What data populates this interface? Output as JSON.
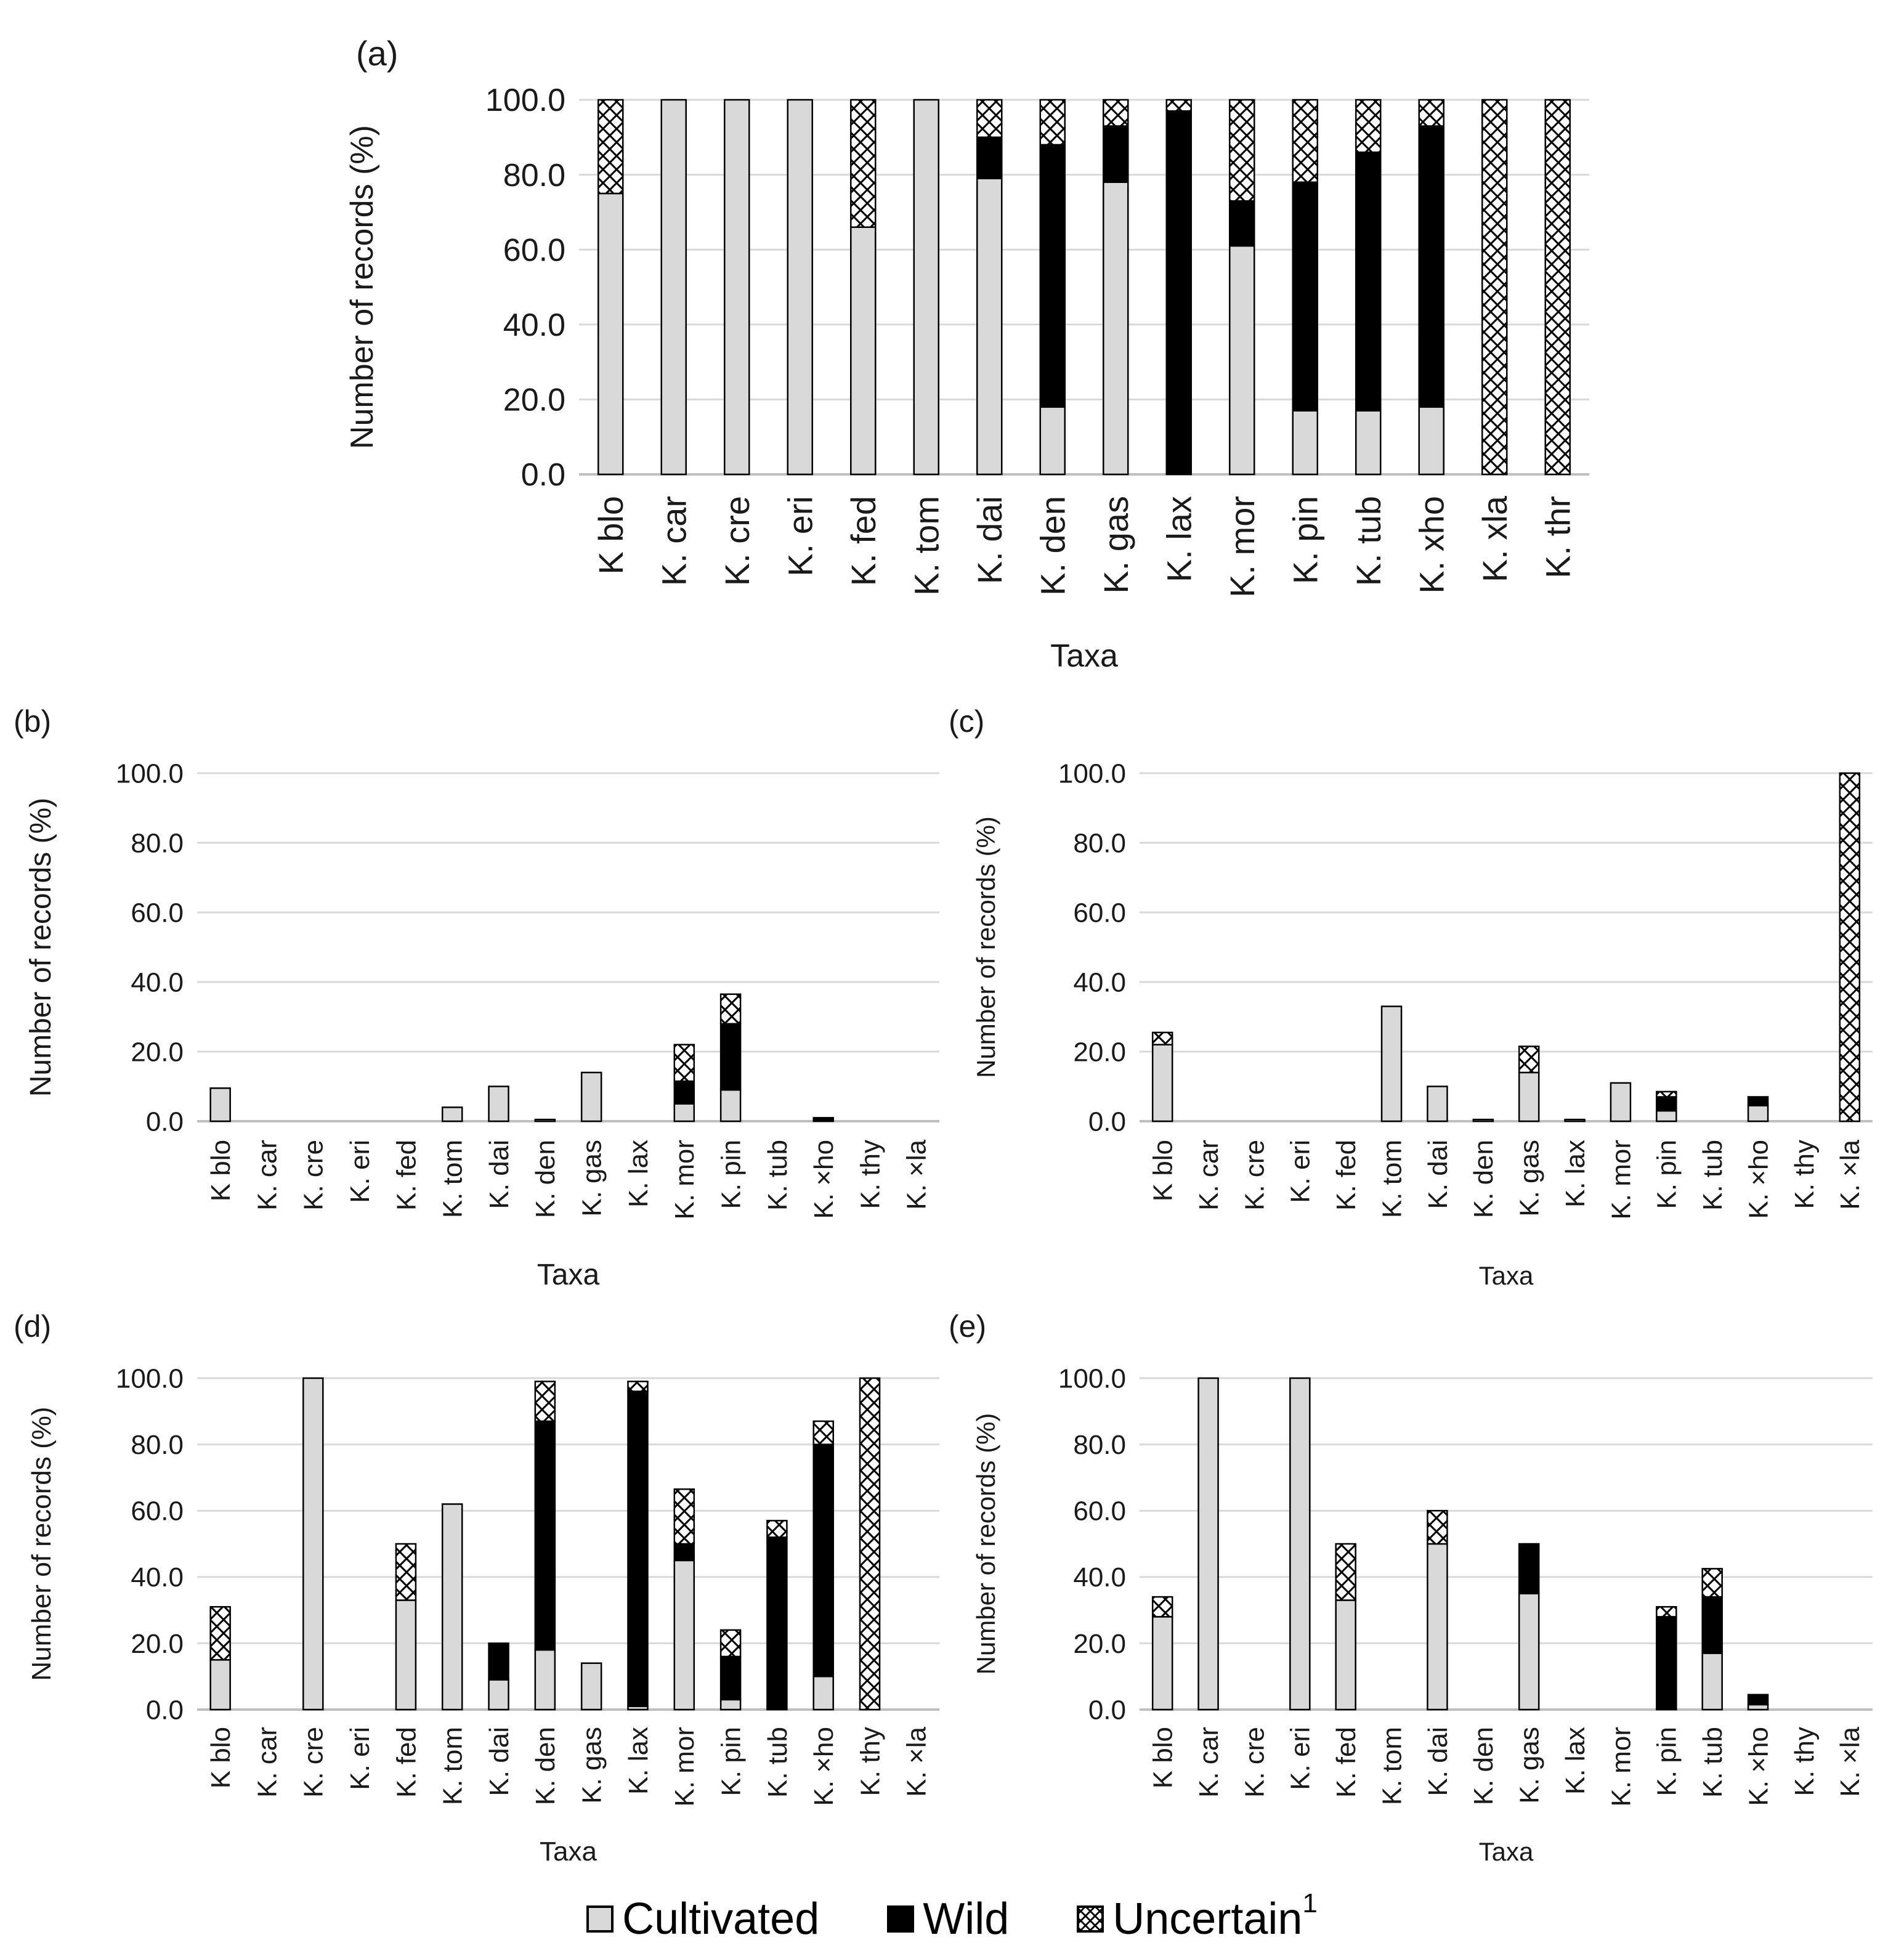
{
  "series_labels": {
    "cultivated": "Cultivated",
    "wild": "Wild",
    "uncertain": "Uncertain",
    "uncertain_sup": "1"
  },
  "colors": {
    "cultivated": "#d9d9d9",
    "wild": "#000000",
    "uncertain_pattern": "#000000",
    "grid": "#d9d9d9",
    "axis": "#bfbfbf"
  },
  "chart_data": [
    {
      "panel": "(a)",
      "type": "bar",
      "stacked": true,
      "xlabel": "Taxa",
      "ylabel": "Number of records (%)",
      "ylim": [
        0,
        100
      ],
      "yticks": [
        "0.0",
        "20.0",
        "40.0",
        "60.0",
        "80.0",
        "100.0"
      ],
      "categories": [
        "K blo",
        "K. car",
        "K. cre",
        "K. eri",
        "K. fed",
        "K. tom",
        "K. dai",
        "K. den",
        "K. gas",
        "K. lax",
        "K. mor",
        "K. pin",
        "K. tub",
        "K. xho",
        "K. xla",
        "K. thr"
      ],
      "series": [
        {
          "name": "Cultivated",
          "values": [
            75,
            100,
            100,
            100,
            66,
            100,
            79,
            18,
            78,
            0,
            61,
            17,
            17,
            18,
            0,
            0
          ]
        },
        {
          "name": "Wild",
          "values": [
            0,
            0,
            0,
            0,
            0,
            0,
            11,
            70,
            15,
            97,
            12,
            61,
            69,
            75,
            0,
            0
          ]
        },
        {
          "name": "Uncertain",
          "values": [
            25,
            0,
            0,
            0,
            34,
            0,
            10,
            12,
            7,
            3,
            27,
            22,
            14,
            7,
            100,
            100
          ]
        }
      ]
    },
    {
      "panel": "(b)",
      "type": "bar",
      "stacked": true,
      "xlabel": "Taxa",
      "ylabel": "Number of records (%)",
      "ylim": [
        0,
        100
      ],
      "yticks": [
        "0.0",
        "20.0",
        "40.0",
        "60.0",
        "80.0",
        "100.0"
      ],
      "categories": [
        "K blo",
        "K. car",
        "K. cre",
        "K. eri",
        "K. fed",
        "K. tom",
        "K. dai",
        "K. den",
        "K. gas",
        "K. lax",
        "K. mor",
        "K. pin",
        "K. tub",
        "K. ×ho",
        "K. thy",
        "K. ×la"
      ],
      "series": [
        {
          "name": "Cultivated",
          "values": [
            9.5,
            0,
            0,
            0,
            0,
            4,
            10,
            0.5,
            14,
            0,
            5,
            9,
            0,
            0,
            0,
            0
          ]
        },
        {
          "name": "Wild",
          "values": [
            0,
            0,
            0,
            0,
            0,
            0,
            0,
            0,
            0,
            0,
            6.5,
            19,
            0,
            1,
            0,
            0
          ]
        },
        {
          "name": "Uncertain",
          "values": [
            0,
            0,
            0,
            0,
            0,
            0,
            0,
            0,
            0,
            0,
            10.5,
            8.5,
            0,
            0,
            0,
            0
          ]
        }
      ]
    },
    {
      "panel": "(c)",
      "type": "bar",
      "stacked": true,
      "xlabel": "Taxa",
      "ylabel": "Number of records (%)",
      "ylim": [
        0,
        100
      ],
      "yticks": [
        "0.0",
        "20.0",
        "40.0",
        "60.0",
        "80.0",
        "100.0"
      ],
      "categories": [
        "K blo",
        "K. car",
        "K. cre",
        "K. eri",
        "K. fed",
        "K. tom",
        "K. dai",
        "K. den",
        "K. gas",
        "K. lax",
        "K. mor",
        "K. pin",
        "K. tub",
        "K. ×ho",
        "K. thy",
        "K. ×la"
      ],
      "series": [
        {
          "name": "Cultivated",
          "values": [
            22,
            0,
            0,
            0,
            0,
            33,
            10,
            0.5,
            14,
            0.5,
            11,
            3,
            0,
            4.5,
            0,
            0
          ]
        },
        {
          "name": "Wild",
          "values": [
            0,
            0,
            0,
            0,
            0,
            0,
            0,
            0,
            0,
            0,
            0,
            4,
            0,
            2.5,
            0,
            0
          ]
        },
        {
          "name": "Uncertain",
          "values": [
            3.5,
            0,
            0,
            0,
            0,
            0,
            0,
            0,
            7.5,
            0,
            0,
            1.5,
            0,
            0,
            0,
            100
          ]
        }
      ]
    },
    {
      "panel": "(d)",
      "type": "bar",
      "stacked": true,
      "xlabel": "Taxa",
      "ylabel": "Number of records (%)",
      "ylim": [
        0,
        100
      ],
      "yticks": [
        "0.0",
        "20.0",
        "40.0",
        "60.0",
        "80.0",
        "100.0"
      ],
      "categories": [
        "K blo",
        "K. car",
        "K. cre",
        "K. eri",
        "K. fed",
        "K. tom",
        "K. dai",
        "K. den",
        "K. gas",
        "K. lax",
        "K. mor",
        "K. pin",
        "K. tub",
        "K. ×ho",
        "K. thy",
        "K. ×la"
      ],
      "series": [
        {
          "name": "Cultivated",
          "values": [
            15,
            0,
            100,
            0,
            33,
            62,
            9,
            18,
            14,
            1,
            45,
            3,
            0,
            10,
            0,
            0
          ]
        },
        {
          "name": "Wild",
          "values": [
            0,
            0,
            0,
            0,
            0,
            0,
            11,
            69,
            0,
            95,
            5,
            13,
            52,
            70,
            0,
            0
          ]
        },
        {
          "name": "Uncertain",
          "values": [
            16,
            0,
            0,
            0,
            17,
            0,
            0,
            12,
            0,
            3,
            16.5,
            8,
            5,
            7,
            100,
            0
          ]
        }
      ]
    },
    {
      "panel": "(e)",
      "type": "bar",
      "stacked": true,
      "xlabel": "Taxa",
      "ylabel": "Number of records (%)",
      "ylim": [
        0,
        100
      ],
      "yticks": [
        "0.0",
        "20.0",
        "40.0",
        "60.0",
        "80.0",
        "100.0"
      ],
      "categories": [
        "K blo",
        "K. car",
        "K. cre",
        "K. eri",
        "K. fed",
        "K. tom",
        "K. dai",
        "K. den",
        "K. gas",
        "K. lax",
        "K. mor",
        "K. pin",
        "K. tub",
        "K. ×ho",
        "K. thy",
        "K. ×la"
      ],
      "series": [
        {
          "name": "Cultivated",
          "values": [
            28,
            100,
            0,
            100,
            33,
            0,
            50,
            0,
            35,
            0,
            0,
            0,
            17,
            1.5,
            0,
            0
          ]
        },
        {
          "name": "Wild",
          "values": [
            0,
            0,
            0,
            0,
            0,
            0,
            0,
            0,
            15,
            0,
            0,
            28,
            17,
            3,
            0,
            0
          ]
        },
        {
          "name": "Uncertain",
          "values": [
            6,
            0,
            0,
            0,
            17,
            0,
            10,
            0,
            0,
            0,
            0,
            3,
            8.5,
            0,
            0,
            0
          ]
        }
      ]
    }
  ]
}
